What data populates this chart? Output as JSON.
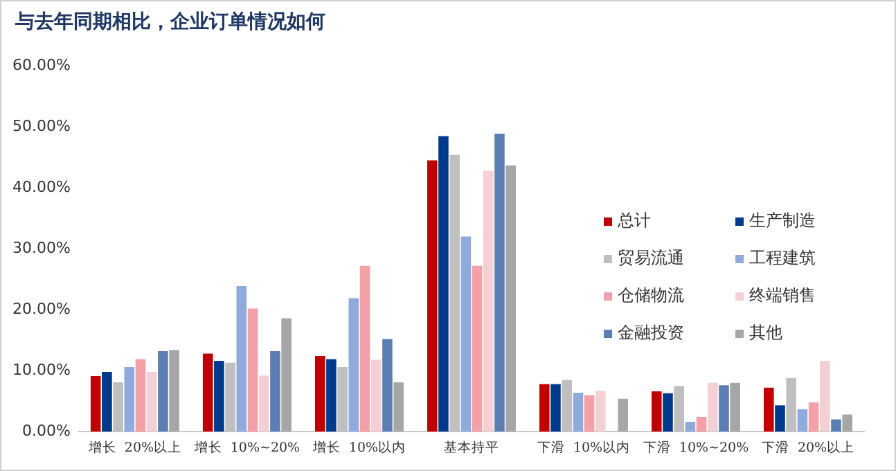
{
  "chart_data": {
    "type": "bar",
    "title": "与去年同期相比，企业订单情况如何",
    "categories": [
      "增长  20%以上",
      "增长  10%~20%",
      "增长  10%以内",
      "基本持平",
      "下滑  10%以内",
      "下滑  10%~20%",
      "下滑  20%以上"
    ],
    "series": [
      {
        "name": "总计",
        "color": "#c00000",
        "values": [
          9.1,
          12.8,
          12.4,
          44.5,
          7.8,
          6.6,
          7.2
        ]
      },
      {
        "name": "生产制造",
        "color": "#003a8c",
        "values": [
          9.8,
          11.6,
          11.9,
          48.5,
          7.8,
          6.3,
          4.3
        ]
      },
      {
        "name": "贸易流通",
        "color": "#bfbfbf",
        "values": [
          8.1,
          11.3,
          10.6,
          45.4,
          8.5,
          7.5,
          8.8
        ]
      },
      {
        "name": "工程建筑",
        "color": "#8faadc",
        "values": [
          10.6,
          23.9,
          21.9,
          32.0,
          6.4,
          1.6,
          3.7
        ]
      },
      {
        "name": "仓储物流",
        "color": "#f4a0a8",
        "values": [
          11.9,
          20.2,
          27.2,
          27.2,
          6.0,
          2.4,
          4.8
        ]
      },
      {
        "name": "终端销售",
        "color": "#f2d0d4",
        "values": [
          9.8,
          9.2,
          11.8,
          42.8,
          6.7,
          8.0,
          11.6
        ]
      },
      {
        "name": "金融投资",
        "color": "#5b7fb5",
        "values": [
          13.2,
          13.2,
          15.2,
          48.9,
          0,
          7.6,
          2.0
        ]
      },
      {
        "name": "其他",
        "color": "#a6a6a6",
        "values": [
          13.4,
          18.6,
          8.1,
          43.7,
          5.4,
          8.0,
          2.8
        ]
      }
    ],
    "ylim": [
      0,
      60
    ],
    "yticks": [
      {
        "value": 0,
        "label": "0.00%"
      },
      {
        "value": 10,
        "label": "10.00%"
      },
      {
        "value": 20,
        "label": "20.00%"
      },
      {
        "value": 30,
        "label": "30.00%"
      },
      {
        "value": 40,
        "label": "40.00%"
      },
      {
        "value": 50,
        "label": "50.00%"
      },
      {
        "value": 60,
        "label": "60.00%"
      }
    ],
    "grid": false,
    "legend": "right"
  }
}
